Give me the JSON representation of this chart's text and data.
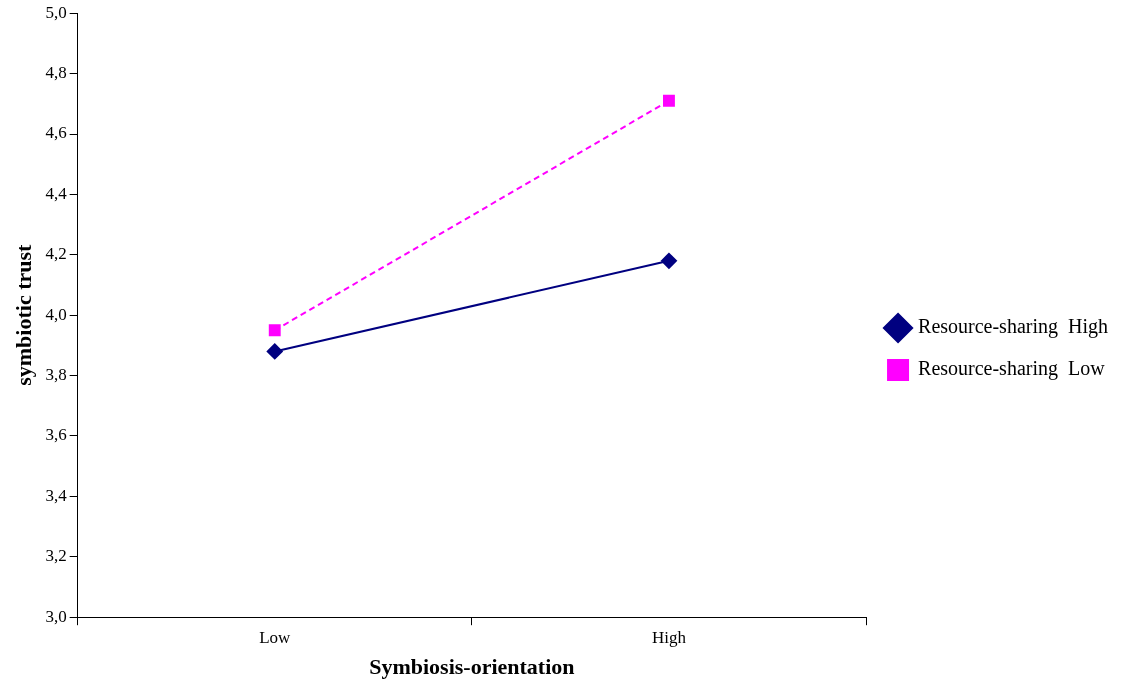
{
  "chart_data": {
    "type": "line",
    "xlabel": "Symbiosis-orientation",
    "ylabel": "symbiotic trust",
    "categories": [
      "Low",
      "High"
    ],
    "series": [
      {
        "name": "Resource-sharing  High",
        "color": "#000080",
        "values": [
          3.88,
          4.18
        ],
        "marker": "diamond",
        "line_style": "solid"
      },
      {
        "name": "Resource-sharing  Low",
        "color": "#ff00ff",
        "values": [
          3.95,
          4.71
        ],
        "marker": "square",
        "line_style": "dashed"
      }
    ],
    "ylim": [
      3.0,
      5.0
    ],
    "yticks": [
      {
        "value": 3.0,
        "label": "3,0"
      },
      {
        "value": 3.2,
        "label": "3,2"
      },
      {
        "value": 3.4,
        "label": "3,4"
      },
      {
        "value": 3.6,
        "label": "3,6"
      },
      {
        "value": 3.8,
        "label": "3,8"
      },
      {
        "value": 4.0,
        "label": "4,0"
      },
      {
        "value": 4.2,
        "label": "4,2"
      },
      {
        "value": 4.4,
        "label": "4,4"
      },
      {
        "value": 4.6,
        "label": "4,6"
      },
      {
        "value": 4.8,
        "label": "4,8"
      },
      {
        "value": 5.0,
        "label": "5,0"
      }
    ],
    "grid": false,
    "legend": "right"
  }
}
